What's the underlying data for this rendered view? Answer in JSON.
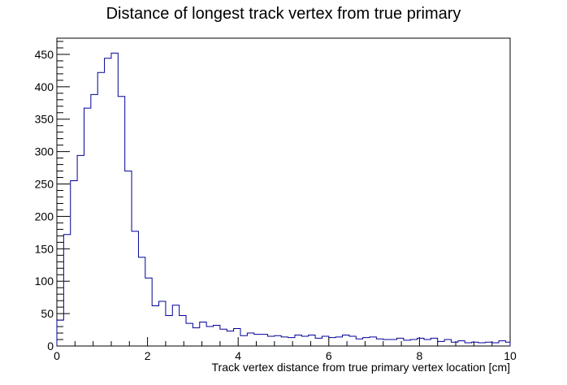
{
  "chart_data": {
    "type": "histogram",
    "title": "Distance of longest track vertex from true primary",
    "xlabel": "Track vertex distance from true primary vertex location [cm]",
    "ylabel": "",
    "xlim": [
      0,
      10
    ],
    "ylim": [
      0,
      475
    ],
    "x_ticks": [
      0,
      2,
      4,
      6,
      8,
      10
    ],
    "x_tick_labels": [
      "0",
      "2",
      "4",
      "6",
      "8",
      "10"
    ],
    "y_ticks": [
      0,
      50,
      100,
      150,
      200,
      250,
      300,
      350,
      400,
      450
    ],
    "y_tick_labels": [
      "0",
      "50",
      "100",
      "150",
      "200",
      "250",
      "300",
      "350",
      "400",
      "450"
    ],
    "grid": false,
    "line_color": "#000099",
    "bin_edges": [
      0,
      0.15,
      0.3,
      0.45,
      0.6,
      0.75,
      0.9,
      1.05,
      1.2,
      1.35,
      1.5,
      1.65,
      1.8,
      1.95,
      2.1,
      2.25,
      2.4,
      2.55,
      2.7,
      2.85,
      3.0,
      3.15,
      3.3,
      3.45,
      3.6,
      3.75,
      3.9,
      4.05,
      4.2,
      4.35,
      4.5,
      4.65,
      4.8,
      4.95,
      5.1,
      5.25,
      5.4,
      5.55,
      5.7,
      5.85,
      6.0,
      6.15,
      6.3,
      6.45,
      6.6,
      6.75,
      6.9,
      7.05,
      7.2,
      7.35,
      7.5,
      7.65,
      7.8,
      7.95,
      8.1,
      8.25,
      8.4,
      8.55,
      8.7,
      8.85,
      9.0,
      9.15,
      9.3,
      9.45,
      9.6,
      9.75,
      9.9,
      10.0
    ],
    "values": [
      40,
      172,
      255,
      294,
      367,
      388,
      422,
      444,
      452,
      385,
      270,
      177,
      137,
      105,
      62,
      69,
      47,
      63,
      47,
      35,
      28,
      37,
      30,
      32,
      26,
      23,
      27,
      16,
      20,
      18,
      18,
      15,
      16,
      14,
      13,
      17,
      15,
      17,
      12,
      15,
      13,
      14,
      17,
      15,
      11,
      13,
      14,
      11,
      10,
      10,
      12,
      9,
      10,
      12,
      10,
      12,
      7,
      10,
      6,
      8,
      5,
      6,
      5,
      6,
      5,
      8,
      6
    ]
  }
}
